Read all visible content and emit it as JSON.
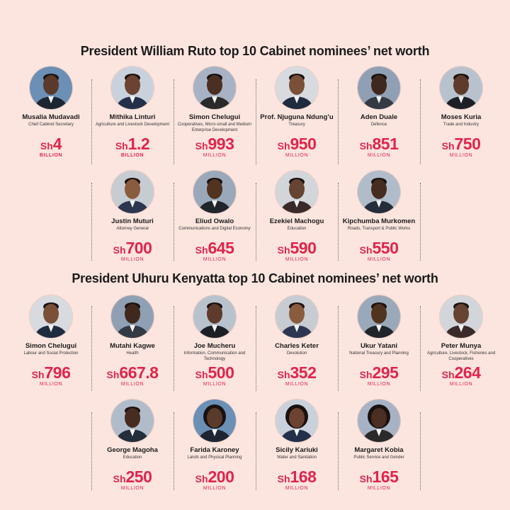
{
  "headings": {
    "ruto": "President William Ruto top 10 Cabinet nominees’ net worth",
    "uhuru": "President Uhuru Kenyatta top 10 Cabinet nominees’ net worth"
  },
  "colors": {
    "background": "#fce5df",
    "accent": "#e0244b",
    "divider": "#6b6b6b"
  },
  "currency": "Sh",
  "ruto": [
    {
      "name": "Musalia Mudavadi",
      "role": "Chief Cabinet Secretary",
      "amount": "4",
      "unit": "BILLION"
    },
    {
      "name": "Mithika Linturi",
      "role": "Agriculture and Livestock Development",
      "amount": "1.2",
      "unit": "BILLION"
    },
    {
      "name": "Simon Chelugui",
      "role": "Cooperatives, Micro-small and Medium Enterprise Development",
      "amount": "993",
      "unit": "MILLION"
    },
    {
      "name": "Prof. Njuguna Ndung’u",
      "role": "Treasury",
      "amount": "950",
      "unit": "MILLION"
    },
    {
      "name": "Aden Duale",
      "role": "Defence",
      "amount": "851",
      "unit": "MILLION"
    },
    {
      "name": "Moses Kuria",
      "role": "Trade and Industry",
      "amount": "750",
      "unit": "MILLION"
    },
    {
      "name": "Justin Muturi",
      "role": "Attorney General",
      "amount": "700",
      "unit": "MILLION"
    },
    {
      "name": "Eliud Owalo",
      "role": "Communications and Digital Economy",
      "amount": "645",
      "unit": "MILLION"
    },
    {
      "name": "Ezekiel Machogu",
      "role": "Education",
      "amount": "590",
      "unit": "MILLION"
    },
    {
      "name": "Kipchumba Murkomen",
      "role": "Roads, Transport & Public Works",
      "amount": "550",
      "unit": "MILLION"
    }
  ],
  "uhuru": [
    {
      "name": "Simon Chelugui",
      "role": "Labour and Social Protection",
      "amount": "796",
      "unit": "MILLION"
    },
    {
      "name": "Mutahi Kagwe",
      "role": "Health",
      "amount": "667.8",
      "unit": "MILLION"
    },
    {
      "name": "Joe Mucheru",
      "role": "Information, Communication and Technology",
      "amount": "500",
      "unit": "MILLION"
    },
    {
      "name": "Charles Keter",
      "role": "Devolution",
      "amount": "352",
      "unit": "MILLION"
    },
    {
      "name": "Ukur Yatani",
      "role": "National Treasury and Planning",
      "amount": "295",
      "unit": "MILLION"
    },
    {
      "name": "Peter Munya",
      "role": "Agriculture, Livestock, Fisheries and Cooperatives",
      "amount": "264",
      "unit": "MILLION"
    },
    {
      "name": "George Magoha",
      "role": "Education",
      "amount": "250",
      "unit": "MILLION"
    },
    {
      "name": "Farida Karoney",
      "role": "Lands and Physical Planning",
      "amount": "200",
      "unit": "MILLION"
    },
    {
      "name": "Sicily Kariuki",
      "role": "Water and Sanitation",
      "amount": "168",
      "unit": "MILLION"
    },
    {
      "name": "Margaret Kobia",
      "role": "Public Service and Gender",
      "amount": "165",
      "unit": "MILLION"
    }
  ]
}
